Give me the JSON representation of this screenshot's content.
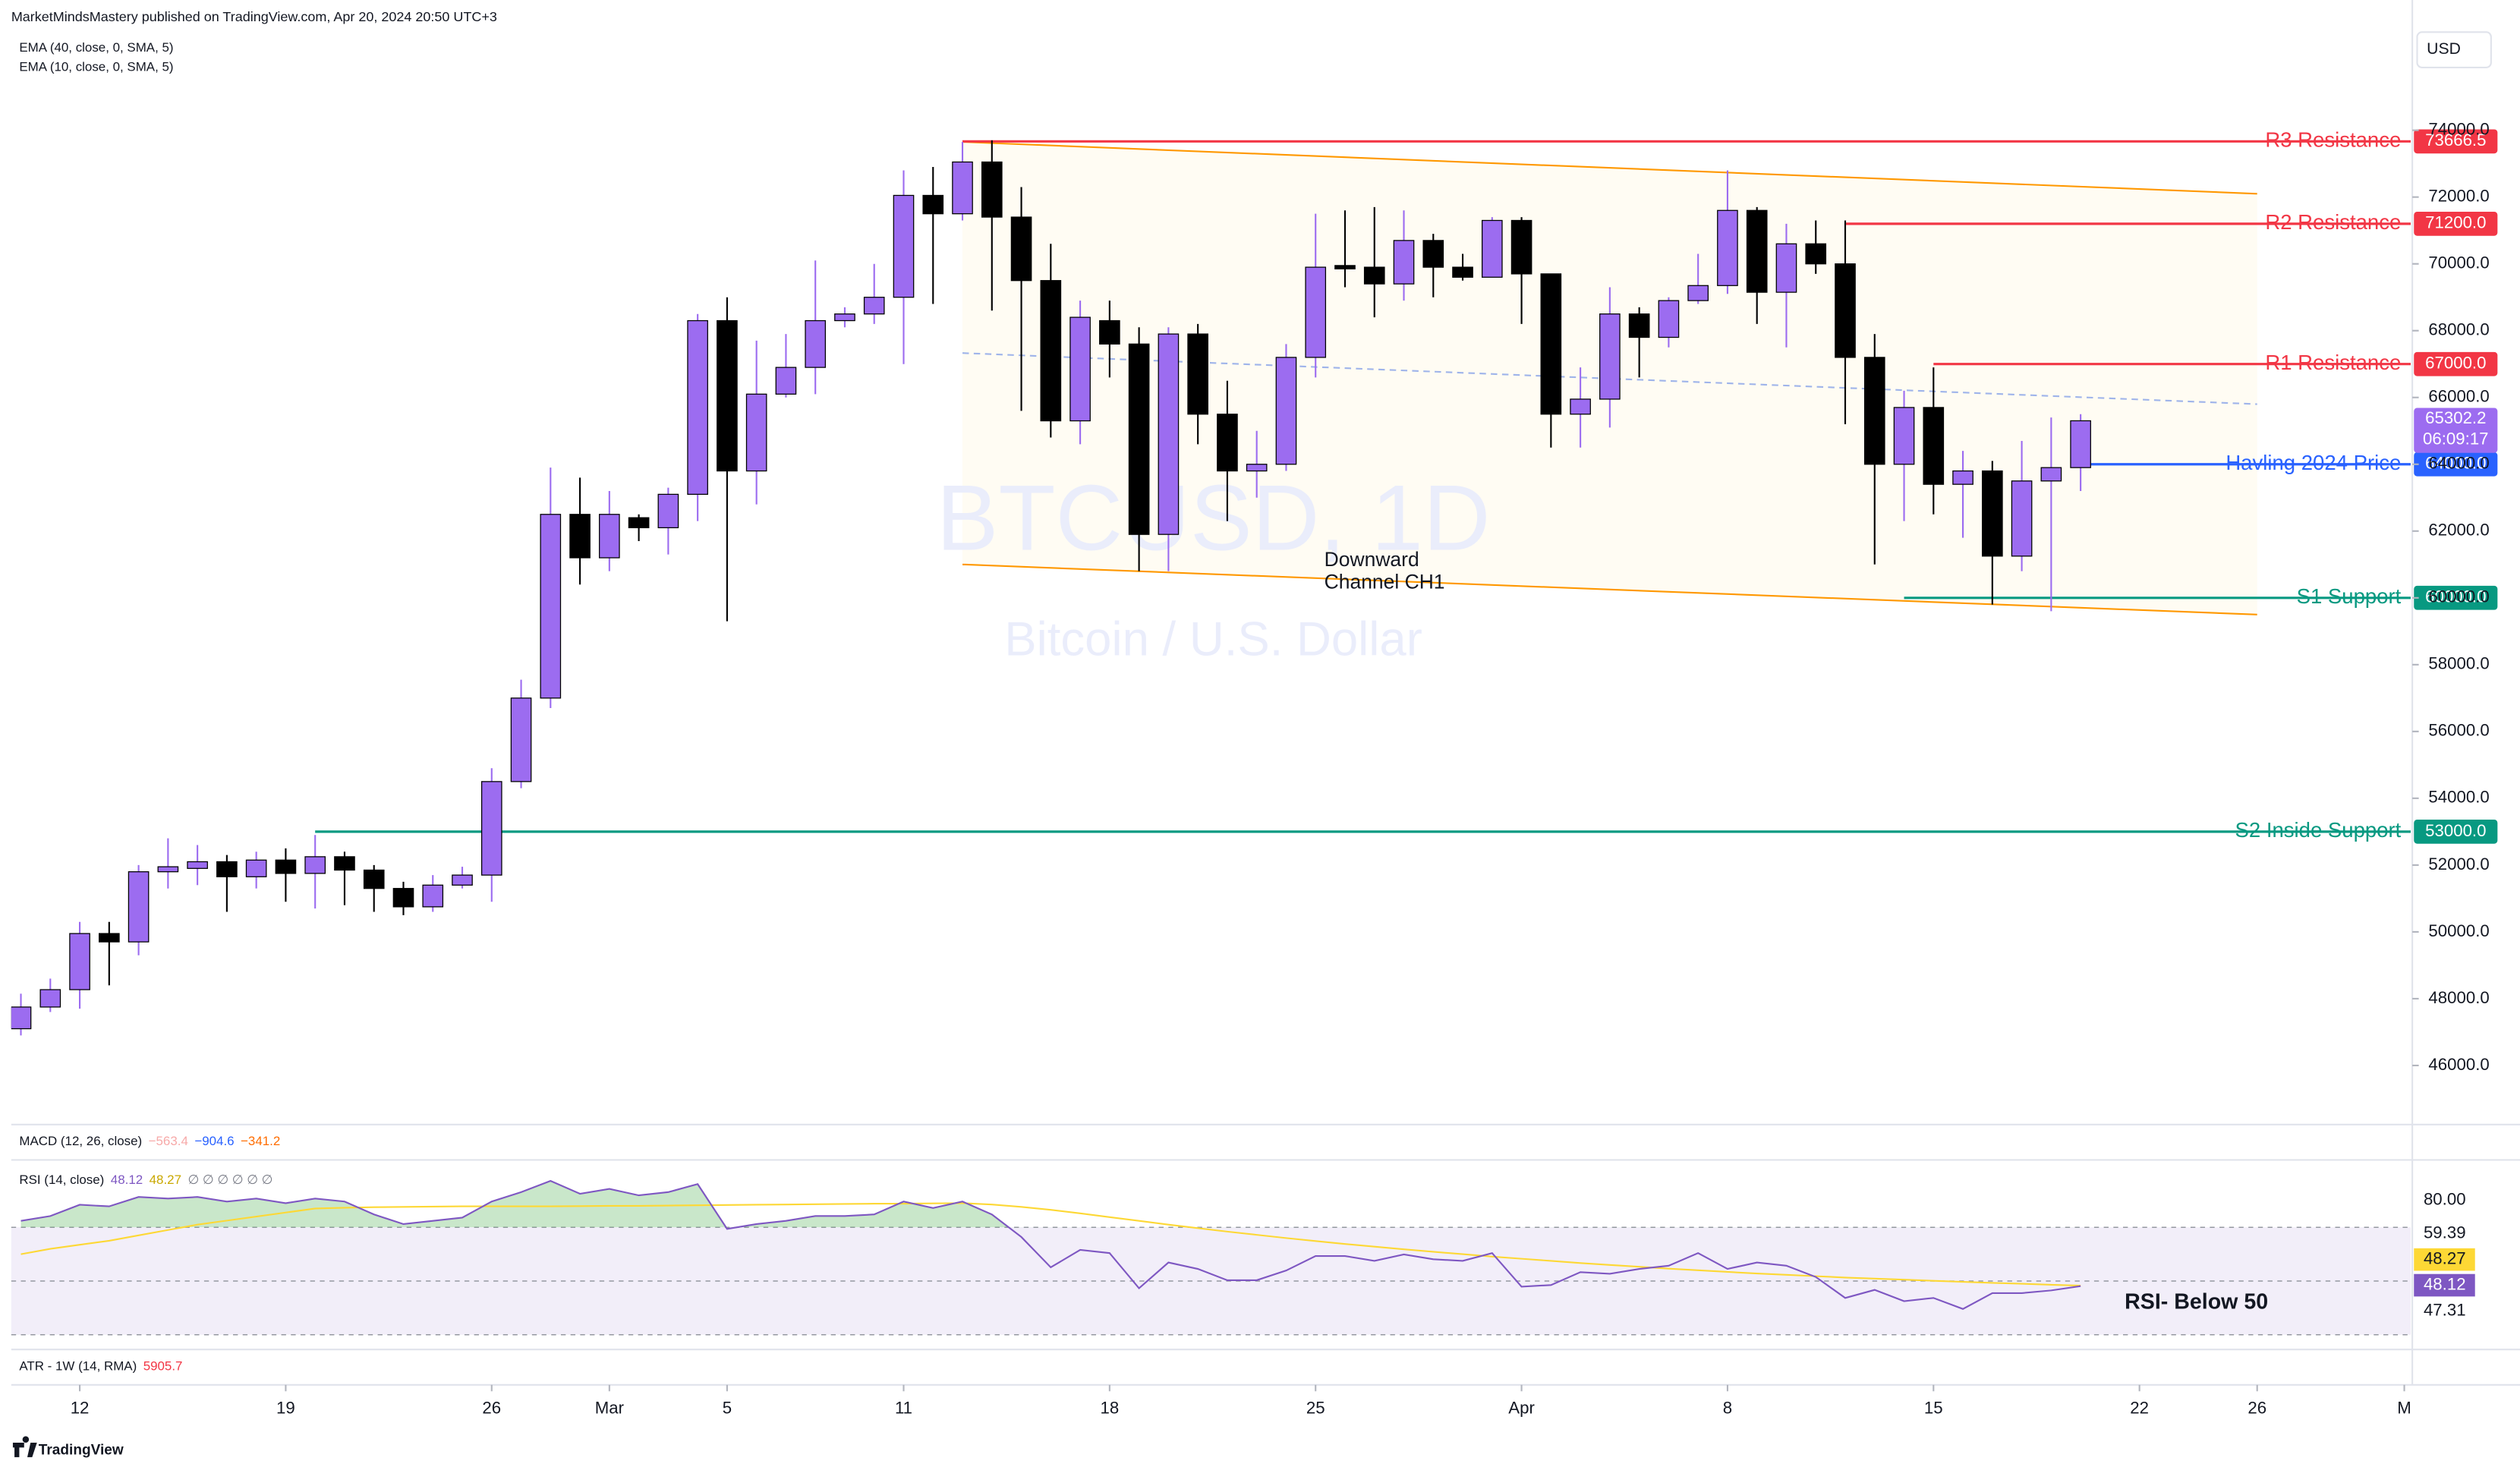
{
  "header": {
    "publisher": "MarketMindsMastery published on TradingView.com, Apr 20, 2024 20:50 UTC+3"
  },
  "footer": {
    "brand": "TradingView"
  },
  "chart_data": {
    "type": "candlestick",
    "symbol": "BTCUSD, 1D",
    "description": "Bitcoin / U.S. Dollar",
    "currency": "USD",
    "indicators": [
      "EMA (40, close, 0, SMA, 5)",
      "EMA (10, close, 0, SMA, 5)"
    ],
    "up_color": "#9c6cf0",
    "down_color": "#000000",
    "dates": [
      "2024-02-10",
      "2024-02-11",
      "2024-02-12",
      "2024-02-13",
      "2024-02-14",
      "2024-02-15",
      "2024-02-16",
      "2024-02-17",
      "2024-02-18",
      "2024-02-19",
      "2024-02-20",
      "2024-02-21",
      "2024-02-22",
      "2024-02-23",
      "2024-02-24",
      "2024-02-25",
      "2024-02-26",
      "2024-02-27",
      "2024-02-28",
      "2024-02-29",
      "2024-03-01",
      "2024-03-02",
      "2024-03-03",
      "2024-03-04",
      "2024-03-05",
      "2024-03-06",
      "2024-03-07",
      "2024-03-08",
      "2024-03-09",
      "2024-03-10",
      "2024-03-11",
      "2024-03-12",
      "2024-03-13",
      "2024-03-14",
      "2024-03-15",
      "2024-03-16",
      "2024-03-17",
      "2024-03-18",
      "2024-03-19",
      "2024-03-20",
      "2024-03-21",
      "2024-03-22",
      "2024-03-23",
      "2024-03-24",
      "2024-03-25",
      "2024-03-26",
      "2024-03-27",
      "2024-03-28",
      "2024-03-29",
      "2024-03-30",
      "2024-03-31",
      "2024-04-01",
      "2024-04-02",
      "2024-04-03",
      "2024-04-04",
      "2024-04-05",
      "2024-04-06",
      "2024-04-07",
      "2024-04-08",
      "2024-04-09",
      "2024-04-10",
      "2024-04-11",
      "2024-04-12",
      "2024-04-13",
      "2024-04-14",
      "2024-04-15",
      "2024-04-16",
      "2024-04-17",
      "2024-04-18",
      "2024-04-19",
      "2024-04-20"
    ],
    "open": [
      47100,
      47750,
      48270,
      49950,
      49700,
      51800,
      51900,
      52100,
      51650,
      52150,
      51750,
      52250,
      51850,
      51300,
      50750,
      51400,
      51700,
      54500,
      57000,
      62500,
      61200,
      62400,
      62100,
      63100,
      68300,
      63800,
      66100,
      66900,
      68300,
      68500,
      69000,
      72050,
      71500,
      73050,
      71400,
      69500,
      65300,
      68300,
      67600,
      61900,
      67900,
      65500,
      63800,
      64000,
      67200,
      69950,
      69900,
      69400,
      70700,
      69900,
      69600,
      71300,
      69700,
      65500,
      65950,
      68500,
      67800,
      68900,
      69350,
      71600,
      69150,
      70600,
      70000,
      67200,
      64000,
      65700,
      63400,
      63800,
      61250,
      63500,
      63900
    ],
    "high": [
      48150,
      48600,
      50300,
      50300,
      52000,
      52800,
      52600,
      52300,
      52400,
      52500,
      52900,
      52400,
      52000,
      51500,
      51700,
      51950,
      54900,
      57550,
      63900,
      63600,
      63200,
      62500,
      63300,
      68500,
      69000,
      67700,
      67900,
      70100,
      68700,
      70000,
      72800,
      72900,
      73650,
      73700,
      72300,
      70600,
      68900,
      68900,
      68100,
      68100,
      68200,
      66500,
      65000,
      67600,
      71500,
      71600,
      71700,
      71600,
      70900,
      70300,
      71400,
      71400,
      69700,
      66900,
      69300,
      68700,
      69000,
      70300,
      72800,
      71700,
      71200,
      71300,
      71300,
      67900,
      66200,
      66900,
      64400,
      64100,
      64700,
      65400,
      65500
    ],
    "low": [
      46900,
      47600,
      47700,
      48400,
      49300,
      51300,
      51400,
      50600,
      51300,
      50900,
      50700,
      50800,
      50600,
      50500,
      50600,
      51300,
      50900,
      54300,
      56700,
      60400,
      60800,
      61700,
      61300,
      62300,
      59300,
      62800,
      66000,
      66100,
      68100,
      68200,
      67000,
      68800,
      71300,
      68600,
      65600,
      64800,
      64600,
      66600,
      60800,
      60800,
      64600,
      62300,
      63000,
      63800,
      66600,
      69300,
      68400,
      68900,
      69000,
      69500,
      69600,
      68200,
      64500,
      64500,
      65100,
      66600,
      67500,
      68800,
      69100,
      68200,
      67500,
      69700,
      65200,
      61000,
      62300,
      62500,
      61800,
      59800,
      60800,
      59600,
      63200
    ],
    "close": [
      47750,
      48270,
      49950,
      49700,
      51800,
      51950,
      52100,
      51650,
      52150,
      51750,
      52250,
      51850,
      51300,
      50750,
      51400,
      51700,
      54500,
      57000,
      62500,
      61200,
      62500,
      62100,
      63100,
      68300,
      63800,
      66100,
      66900,
      68300,
      68500,
      69000,
      72050,
      71500,
      73050,
      71400,
      69500,
      65300,
      68400,
      67600,
      61900,
      67900,
      65500,
      63800,
      64000,
      67200,
      69900,
      69850,
      69400,
      70700,
      69900,
      69600,
      71300,
      69700,
      65500,
      65950,
      68500,
      67800,
      68900,
      69350,
      71600,
      69150,
      70600,
      70000,
      67200,
      64000,
      65700,
      63400,
      63800,
      61250,
      63500,
      63900,
      65302.2
    ],
    "last_price": {
      "value": 65302.2,
      "countdown": "06:09:17",
      "color": "#9c6cf0"
    },
    "xlim": [
      "2024-02-10",
      "2024-05-01"
    ],
    "xticks": [
      {
        "value": "2024-02-12",
        "label": "12"
      },
      {
        "value": "2024-02-19",
        "label": "19"
      },
      {
        "value": "2024-02-26",
        "label": "26"
      },
      {
        "value": "2024-03-01",
        "label": "Mar"
      },
      {
        "value": "2024-03-05",
        "label": "5"
      },
      {
        "value": "2024-03-11",
        "label": "11"
      },
      {
        "value": "2024-03-18",
        "label": "18"
      },
      {
        "value": "2024-03-25",
        "label": "25"
      },
      {
        "value": "2024-04-01",
        "label": "Apr"
      },
      {
        "value": "2024-04-08",
        "label": "8"
      },
      {
        "value": "2024-04-15",
        "label": "15"
      },
      {
        "value": "2024-04-22",
        "label": "22"
      },
      {
        "value": "2024-04-26",
        "label": "26"
      },
      {
        "value": "2024-05-01",
        "label": "M"
      }
    ],
    "ylim": [
      44230,
      77900
    ],
    "yticks": [
      {
        "value": 46000,
        "label": "46000.0"
      },
      {
        "value": 48000,
        "label": "48000.0"
      },
      {
        "value": 50000,
        "label": "50000.0"
      },
      {
        "value": 52000,
        "label": "52000.0"
      },
      {
        "value": 54000,
        "label": "54000.0"
      },
      {
        "value": 56000,
        "label": "56000.0"
      },
      {
        "value": 58000,
        "label": "58000.0"
      },
      {
        "value": 60000,
        "label": "60000.0"
      },
      {
        "value": 62000,
        "label": "62000.0"
      },
      {
        "value": 64000,
        "label": "64000.0"
      },
      {
        "value": 66000,
        "label": "66000.0"
      },
      {
        "value": 68000,
        "label": "68000.0"
      },
      {
        "value": 70000,
        "label": "70000.0"
      },
      {
        "value": 72000,
        "label": "72000.0"
      },
      {
        "value": 74000,
        "label": "74000.0"
      }
    ],
    "grid": false,
    "levels": [
      {
        "name": "R3 Resistance",
        "value": 73666.5,
        "value_label": "73666.5",
        "color": "#f23645",
        "start": "2024-03-13"
      },
      {
        "name": "R2 Resistance",
        "value": 71200,
        "value_label": "71200.0",
        "color": "#f23645",
        "start": "2024-04-12"
      },
      {
        "name": "R1 Resistance",
        "value": 67000,
        "value_label": "67000.0",
        "color": "#f23645",
        "start": "2024-04-15"
      },
      {
        "name": "Havling 2024 Price",
        "value": 64000,
        "value_label": "64000.0",
        "color": "#2962ff",
        "start": "2024-04-20"
      },
      {
        "name": "S1 Support",
        "value": 60000,
        "value_label": "60000.0",
        "color": "#089981",
        "start": "2024-04-14"
      },
      {
        "name": "S2 Inside Support",
        "value": 53000,
        "value_label": "53000.0",
        "color": "#089981",
        "start": "2024-02-20"
      }
    ],
    "channel": {
      "label_lines": [
        "Downward",
        "Channel CH1"
      ],
      "start": "2024-03-13",
      "end": "2024-04-26",
      "upper": [
        73650,
        72100
      ],
      "middle": [
        67330,
        65800
      ],
      "lower": [
        61000,
        59500
      ],
      "color": "#ff9800",
      "middle_color": "#9fb4ea",
      "fill": "#fffcf3"
    },
    "macd": {
      "title": "MACD (12, 26, close)",
      "values": [
        -563.4,
        -904.6,
        -341.2
      ],
      "value_labels": [
        "−563.4",
        "−904.6",
        "−341.2"
      ],
      "colors": [
        "#f7a9a8",
        "#2962ff",
        "#ff6d00"
      ]
    },
    "rsi": {
      "title": "RSI (14, close)",
      "value": 48.12,
      "ma_value": 48.27,
      "legend_extra": "∅ ∅ ∅ ∅ ∅ ∅",
      "color": "#7e57c2",
      "ma_color": "#fdd835",
      "values": [
        72.4,
        74.2,
        78.4,
        77.8,
        81.3,
        80.7,
        81.3,
        79.6,
        80.7,
        79.0,
        80.7,
        79.6,
        74.8,
        71.2,
        72.4,
        73.6,
        79.6,
        83.1,
        87.3,
        82.5,
        84.3,
        81.9,
        83.1,
        86.1,
        69.4,
        71.2,
        72.4,
        74.2,
        74.2,
        74.8,
        79.6,
        77.2,
        79.6,
        74.8,
        66.4,
        55.1,
        61.6,
        60.4,
        47.3,
        56.9,
        54.5,
        50.3,
        50.3,
        53.9,
        59.3,
        59.3,
        57.5,
        59.9,
        58.1,
        57.5,
        60.4,
        47.9,
        48.5,
        53.3,
        52.7,
        54.5,
        55.7,
        60.4,
        54.5,
        56.9,
        55.7,
        51.5,
        43.7,
        46.7,
        42.5,
        43.7,
        39.6,
        45.5,
        45.5,
        46.5,
        48.12
      ],
      "ma": [
        60,
        62,
        63.5,
        65,
        67,
        69,
        71,
        72.5,
        74,
        75.5,
        77,
        77.3,
        77.5,
        77.6,
        77.7,
        77.8,
        77.8,
        77.8,
        77.8,
        77.9,
        78,
        78,
        78.1,
        78.2,
        78.3,
        78.4,
        78.5,
        78.6,
        78.7,
        78.8,
        78.8,
        78.9,
        79,
        78.5,
        77.6,
        76.5,
        75.2,
        73.8,
        72.4,
        71,
        69.7,
        68.4,
        67.2,
        66,
        64.9,
        63.8,
        62.8,
        61.8,
        60.9,
        60,
        59.1,
        58.3,
        57.5,
        56.7,
        56,
        55.3,
        54.6,
        54,
        53.4,
        52.8,
        52.3,
        51.8,
        51.3,
        50.9,
        50.5,
        50.1,
        49.7,
        49.3,
        49,
        48.6,
        48.27
      ],
      "ylim": [
        24.5,
        92.1
      ],
      "bands": [
        70,
        50,
        30
      ],
      "yticks": [
        {
          "value": 80,
          "label": "80.00"
        }
      ],
      "scale_labels": [
        "59.39",
        "47.31"
      ],
      "annotation": "RSI- Below 50"
    },
    "atr": {
      "title": "ATR - 1W (14, RMA)",
      "value": 5905.7,
      "color": "#f23645"
    }
  }
}
